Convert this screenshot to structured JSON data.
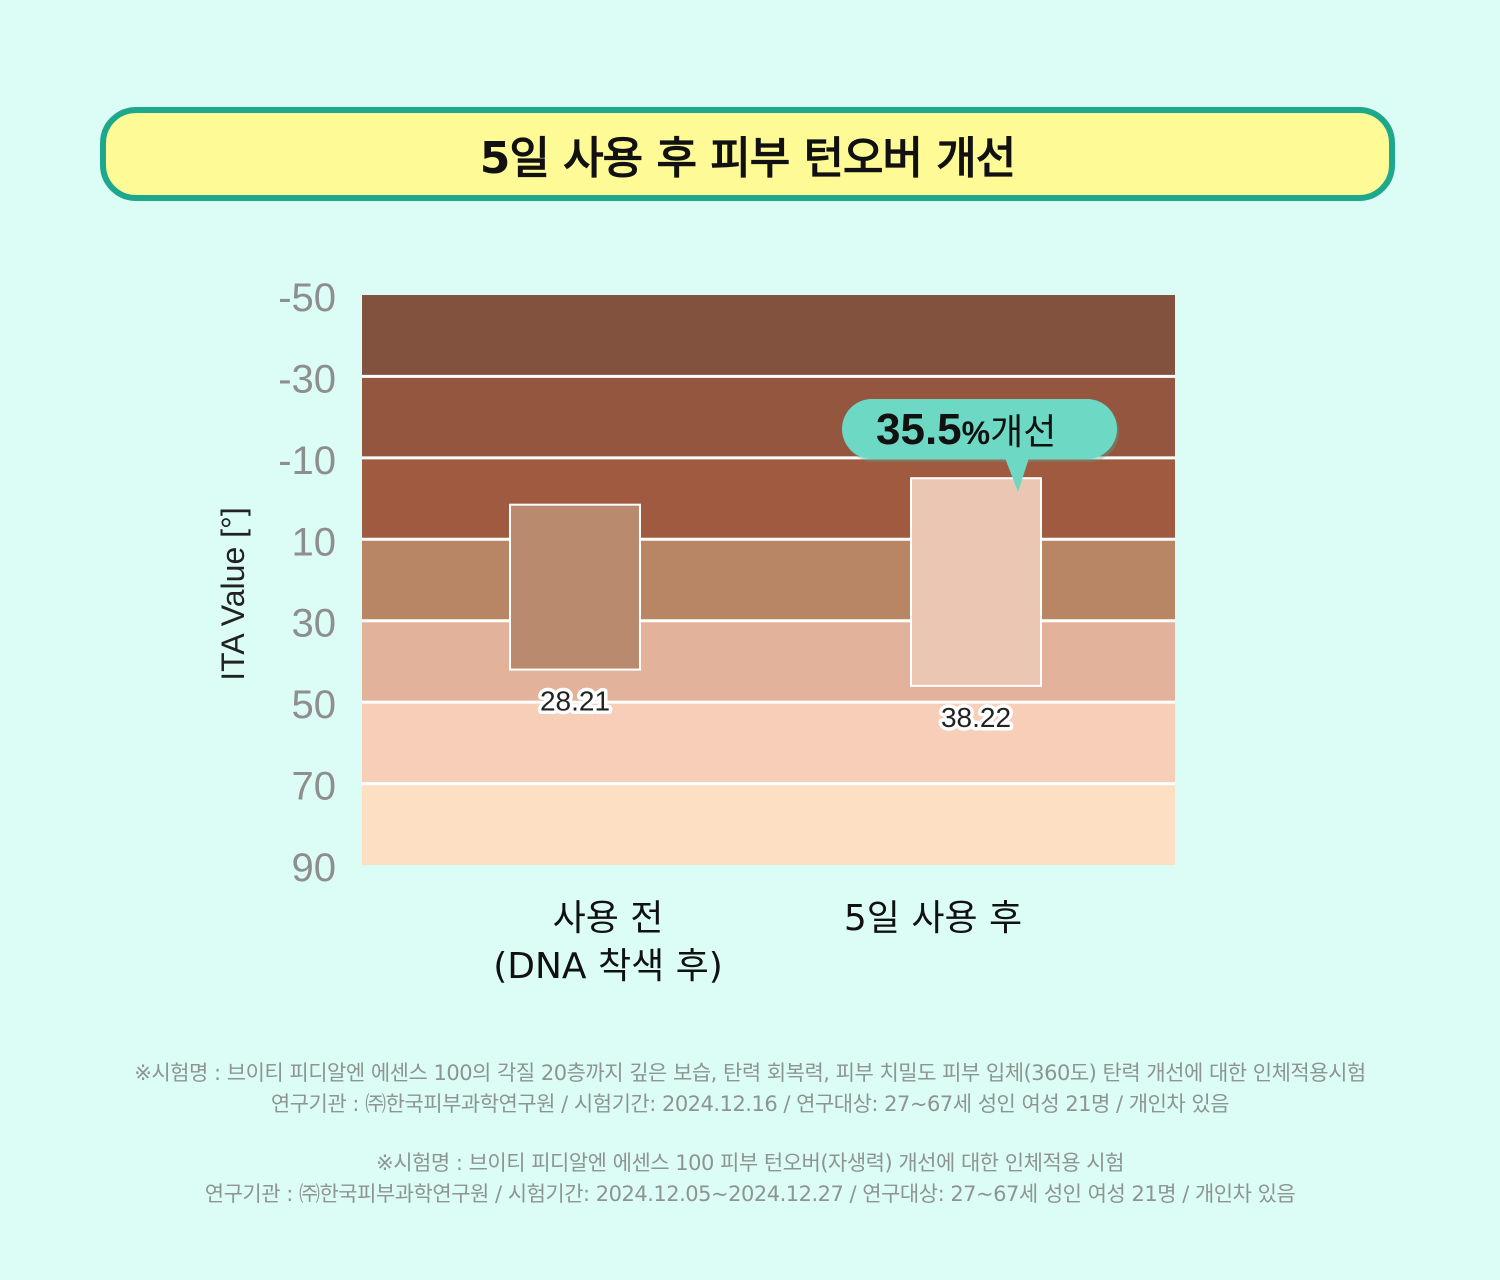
{
  "title": "5일 사용 후 피부 턴오버 개선",
  "chart_data": {
    "type": "floating-bar",
    "ylabel": "ITA Value [°]",
    "yticks": [
      -50,
      -30,
      -10,
      10,
      30,
      50,
      70,
      90
    ],
    "ylim": [
      -50,
      90
    ],
    "y_inverted": true,
    "bands": [
      {
        "from": -50,
        "to": -30,
        "color": "#83523f"
      },
      {
        "from": -30,
        "to": -10,
        "color": "#955640"
      },
      {
        "from": -10,
        "to": 10,
        "color": "#9f5a3f"
      },
      {
        "from": 10,
        "to": 30,
        "color": "#b88565"
      },
      {
        "from": 30,
        "to": 50,
        "color": "#e2b29b"
      },
      {
        "from": 50,
        "to": 70,
        "color": "#f7cfb8"
      },
      {
        "from": 70,
        "to": 90,
        "color": "#fde0c4"
      }
    ],
    "categories": [
      "사용 전\n(DNA 착색 후)",
      "5일 사용 후"
    ],
    "bars": [
      {
        "category": "사용 전\n(DNA 착색 후)",
        "from": 1.5,
        "to": 42,
        "value_label": "28.21",
        "color": "#b98a6d"
      },
      {
        "category": "5일 사용 후",
        "from": -5,
        "to": 46,
        "value_label": "38.22",
        "color": "#ebc6b2"
      }
    ],
    "callout": {
      "bold": "35.5",
      "percent": "%",
      "text": "개선",
      "color": "#6dd8c3"
    }
  },
  "footnotes": [
    "※시험명 : 브이티 피디알엔 에센스 100의 각질 20층까지 깊은 보습, 탄력 회복력, 피부 치밀도 피부 입체(360도) 탄력 개선에 대한 인체적용시험",
    "연구기관 : ㈜한국피부과학연구원 / 시험기간: 2024.12.16 / 연구대상: 27~67세 성인 여성 21명 / 개인차 있음",
    "※시험명 : 브이티 피디알엔 에센스 100 피부 턴오버(자생력) 개선에 대한 인체적용 시험",
    "연구기관 : ㈜한국피부과학연구원 / 시험기간: 2024.12.05~2024.12.27 / 연구대상: 27~67세 성인 여성 21명 / 개인차 있음"
  ]
}
